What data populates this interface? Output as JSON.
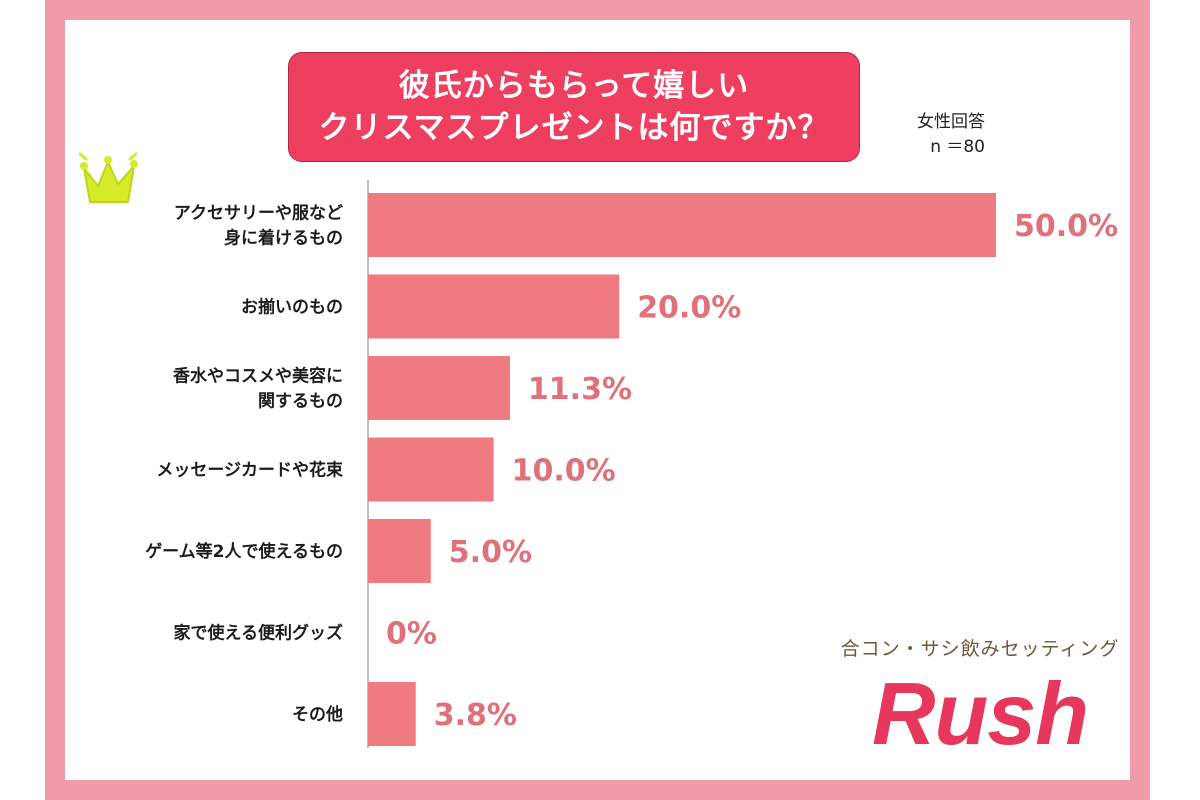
{
  "title_lines": [
    "彼氏からもらって嬉しい",
    "クリスマスプレゼントは何ですか？"
  ],
  "respondents": {
    "group": "女性回答",
    "n": "n ＝80"
  },
  "chart_data": {
    "type": "bar",
    "orientation": "horizontal",
    "categories": [
      [
        "アクセサリーや服など",
        "身に着けるもの"
      ],
      [
        "お揃いのもの"
      ],
      [
        "香水やコスメや美容に",
        "関するもの"
      ],
      [
        "メッセージカードや花束"
      ],
      [
        "ゲーム等2人で使えるもの"
      ],
      [
        "家で使える便利グッズ"
      ],
      [
        "その他"
      ]
    ],
    "values": [
      50.0,
      20.0,
      11.3,
      10.0,
      5.0,
      0,
      3.8
    ],
    "value_labels": [
      "50.0%",
      "20.0%",
      "11.3%",
      "10.0%",
      "5.0%",
      "0%",
      "3.8%"
    ],
    "xlim": [
      0,
      50
    ],
    "grid": false,
    "legend": "none",
    "highlight": "first category marked with a crown"
  },
  "brand": {
    "tagline": "合コン・サシ飲みセッティング",
    "logo": "Rush"
  },
  "colors": {
    "frame": "#f19aaa",
    "title_bg": "#ee3f60",
    "bar": "#ef7a80",
    "value_text": "#e0707a",
    "brand": "#e8375c",
    "crown": "#d7ea2a"
  }
}
